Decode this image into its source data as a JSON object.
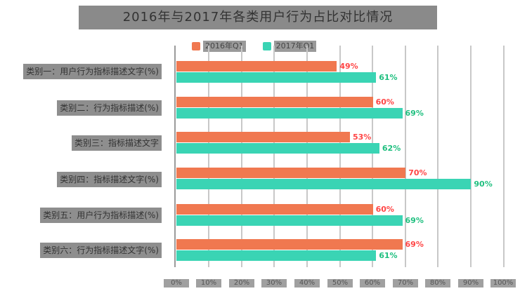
{
  "chart_data": {
    "type": "bar",
    "orientation": "horizontal",
    "title": "2016年与2017年各类用户行为占比对比情况",
    "xlabel": "",
    "ylabel": "",
    "xlim": [
      0,
      100
    ],
    "x_ticks": [
      "0%",
      "10%",
      "20%",
      "30%",
      "40%",
      "50%",
      "60%",
      "70%",
      "80%",
      "90%",
      "100%"
    ],
    "legend_position": "top",
    "grid": true,
    "categories": [
      "类别一：用户行为指标描述文字(%)",
      "类别二：行为指标描述(%)",
      "类别三：指标描述文字",
      "类别四：指标描述文字(%)",
      "类别五：用户行为指标描述(%)",
      "类别六：行为指标描述文字(%)"
    ],
    "series": [
      {
        "name": "2016年Q1",
        "color": "#F07850",
        "label_color": "#FF4545",
        "values": [
          49,
          60,
          53,
          70,
          60,
          69
        ]
      },
      {
        "name": "2017年Q1",
        "color": "#3AD4B4",
        "label_color": "#1FBF7F",
        "values": [
          61,
          69,
          62,
          90,
          69,
          61
        ]
      }
    ],
    "value_labels": {
      "s1": [
        "49%",
        "60%",
        "53%",
        "70%",
        "60%",
        "69%"
      ],
      "s2": [
        "61%",
        "69%",
        "62%",
        "90%",
        "69%",
        "61%"
      ]
    }
  }
}
